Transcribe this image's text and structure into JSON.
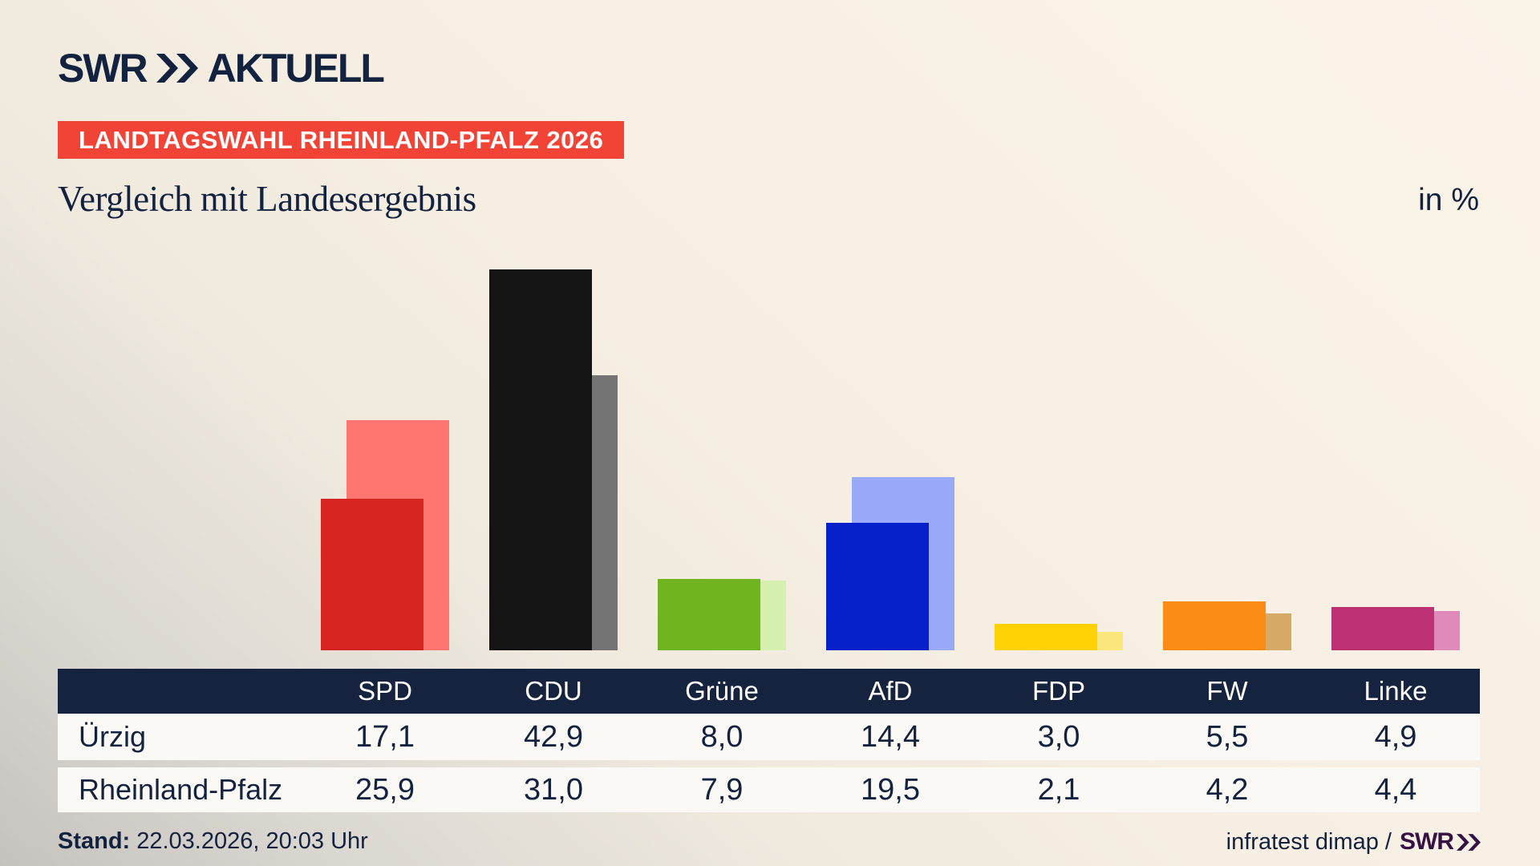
{
  "brand": {
    "swr": "SWR",
    "aktuell": "AKTUELL"
  },
  "banner": {
    "text": "LANDTAGSWAHL RHEINLAND-PFALZ 2026",
    "bg": "#f14336"
  },
  "title": "Vergleich mit Landesergebnis",
  "unit_label": "in %",
  "chart_data": {
    "type": "bar",
    "categories": [
      "SPD",
      "CDU",
      "Grüne",
      "AfD",
      "FDP",
      "FW",
      "Linke"
    ],
    "series": [
      {
        "name": "Ürzig",
        "values": [
          17.1,
          42.9,
          8.0,
          14.4,
          3.0,
          5.5,
          4.9
        ]
      },
      {
        "name": "Rheinland-Pfalz",
        "values": [
          25.9,
          31.0,
          7.9,
          19.5,
          2.1,
          4.2,
          4.4
        ]
      }
    ],
    "unit": "%",
    "ylim": [
      0,
      45
    ],
    "grid": false,
    "legend_position": "none",
    "colors": [
      {
        "front": "#d82421",
        "back": "#ff7670"
      },
      {
        "front": "#141414",
        "back": "#747474"
      },
      {
        "front": "#70b51f",
        "back": "#d6f0af"
      },
      {
        "front": "#0621c9",
        "back": "#9aaaf8"
      },
      {
        "front": "#ffd205",
        "back": "#fce77d"
      },
      {
        "front": "#fb8d14",
        "back": "#d7a967"
      },
      {
        "front": "#bd3274",
        "back": "#de8abb"
      }
    ]
  },
  "table": {
    "columns": [
      "SPD",
      "CDU",
      "Grüne",
      "AfD",
      "FDP",
      "FW",
      "Linke"
    ],
    "rows": [
      {
        "label": "Ürzig",
        "values": [
          "17,1",
          "42,9",
          "8,0",
          "14,4",
          "3,0",
          "5,5",
          "4,9"
        ]
      },
      {
        "label": "Rheinland-Pfalz",
        "values": [
          "25,9",
          "31,0",
          "7,9",
          "19,5",
          "2,1",
          "4,2",
          "4,4"
        ]
      }
    ],
    "header_bg": "#16233f"
  },
  "footer": {
    "stand_label": "Stand:",
    "stand_value": "22.03.2026, 20:03 Uhr",
    "source": "infratest dimap /",
    "source_brand": "SWR"
  }
}
